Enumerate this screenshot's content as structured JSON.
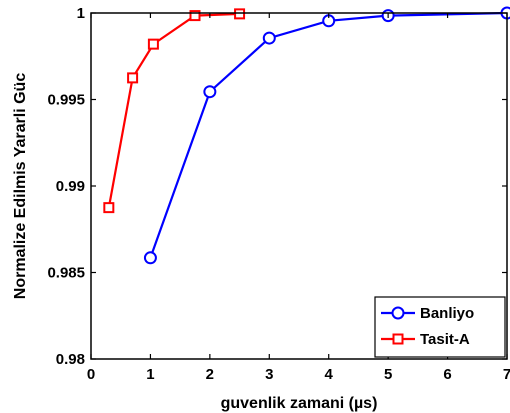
{
  "chart_data": {
    "type": "line",
    "xlabel": "guvenlik zamani (µs)",
    "ylabel": "Normalize Edilmis Yararli Güc",
    "xlim": [
      0,
      7
    ],
    "ylim": [
      0.98,
      1
    ],
    "xticks": [
      0,
      1,
      2,
      3,
      4,
      5,
      6,
      7
    ],
    "xtick_labels": [
      "0",
      "1",
      "2",
      "3",
      "4",
      "5",
      "6",
      "7"
    ],
    "yticks": [
      0.98,
      0.985,
      0.99,
      0.995,
      1
    ],
    "ytick_labels": [
      "0.98",
      "0.985",
      "0.99",
      "0.995",
      "1"
    ],
    "grid": false,
    "legend_position": "bottom-right",
    "series": [
      {
        "name": "Banliyo",
        "color": "#0000ff",
        "marker": "circle",
        "x": [
          1,
          2,
          3,
          4,
          5,
          7
        ],
        "y": [
          0.98585,
          0.99545,
          0.99855,
          0.99955,
          0.99985,
          1.0
        ]
      },
      {
        "name": "Tasit-A",
        "color": "#ff0000",
        "marker": "square",
        "x": [
          0.3,
          0.7,
          1.05,
          1.75,
          2.5
        ],
        "y": [
          0.98875,
          0.99625,
          0.9982,
          0.99985,
          0.99995
        ]
      }
    ]
  }
}
